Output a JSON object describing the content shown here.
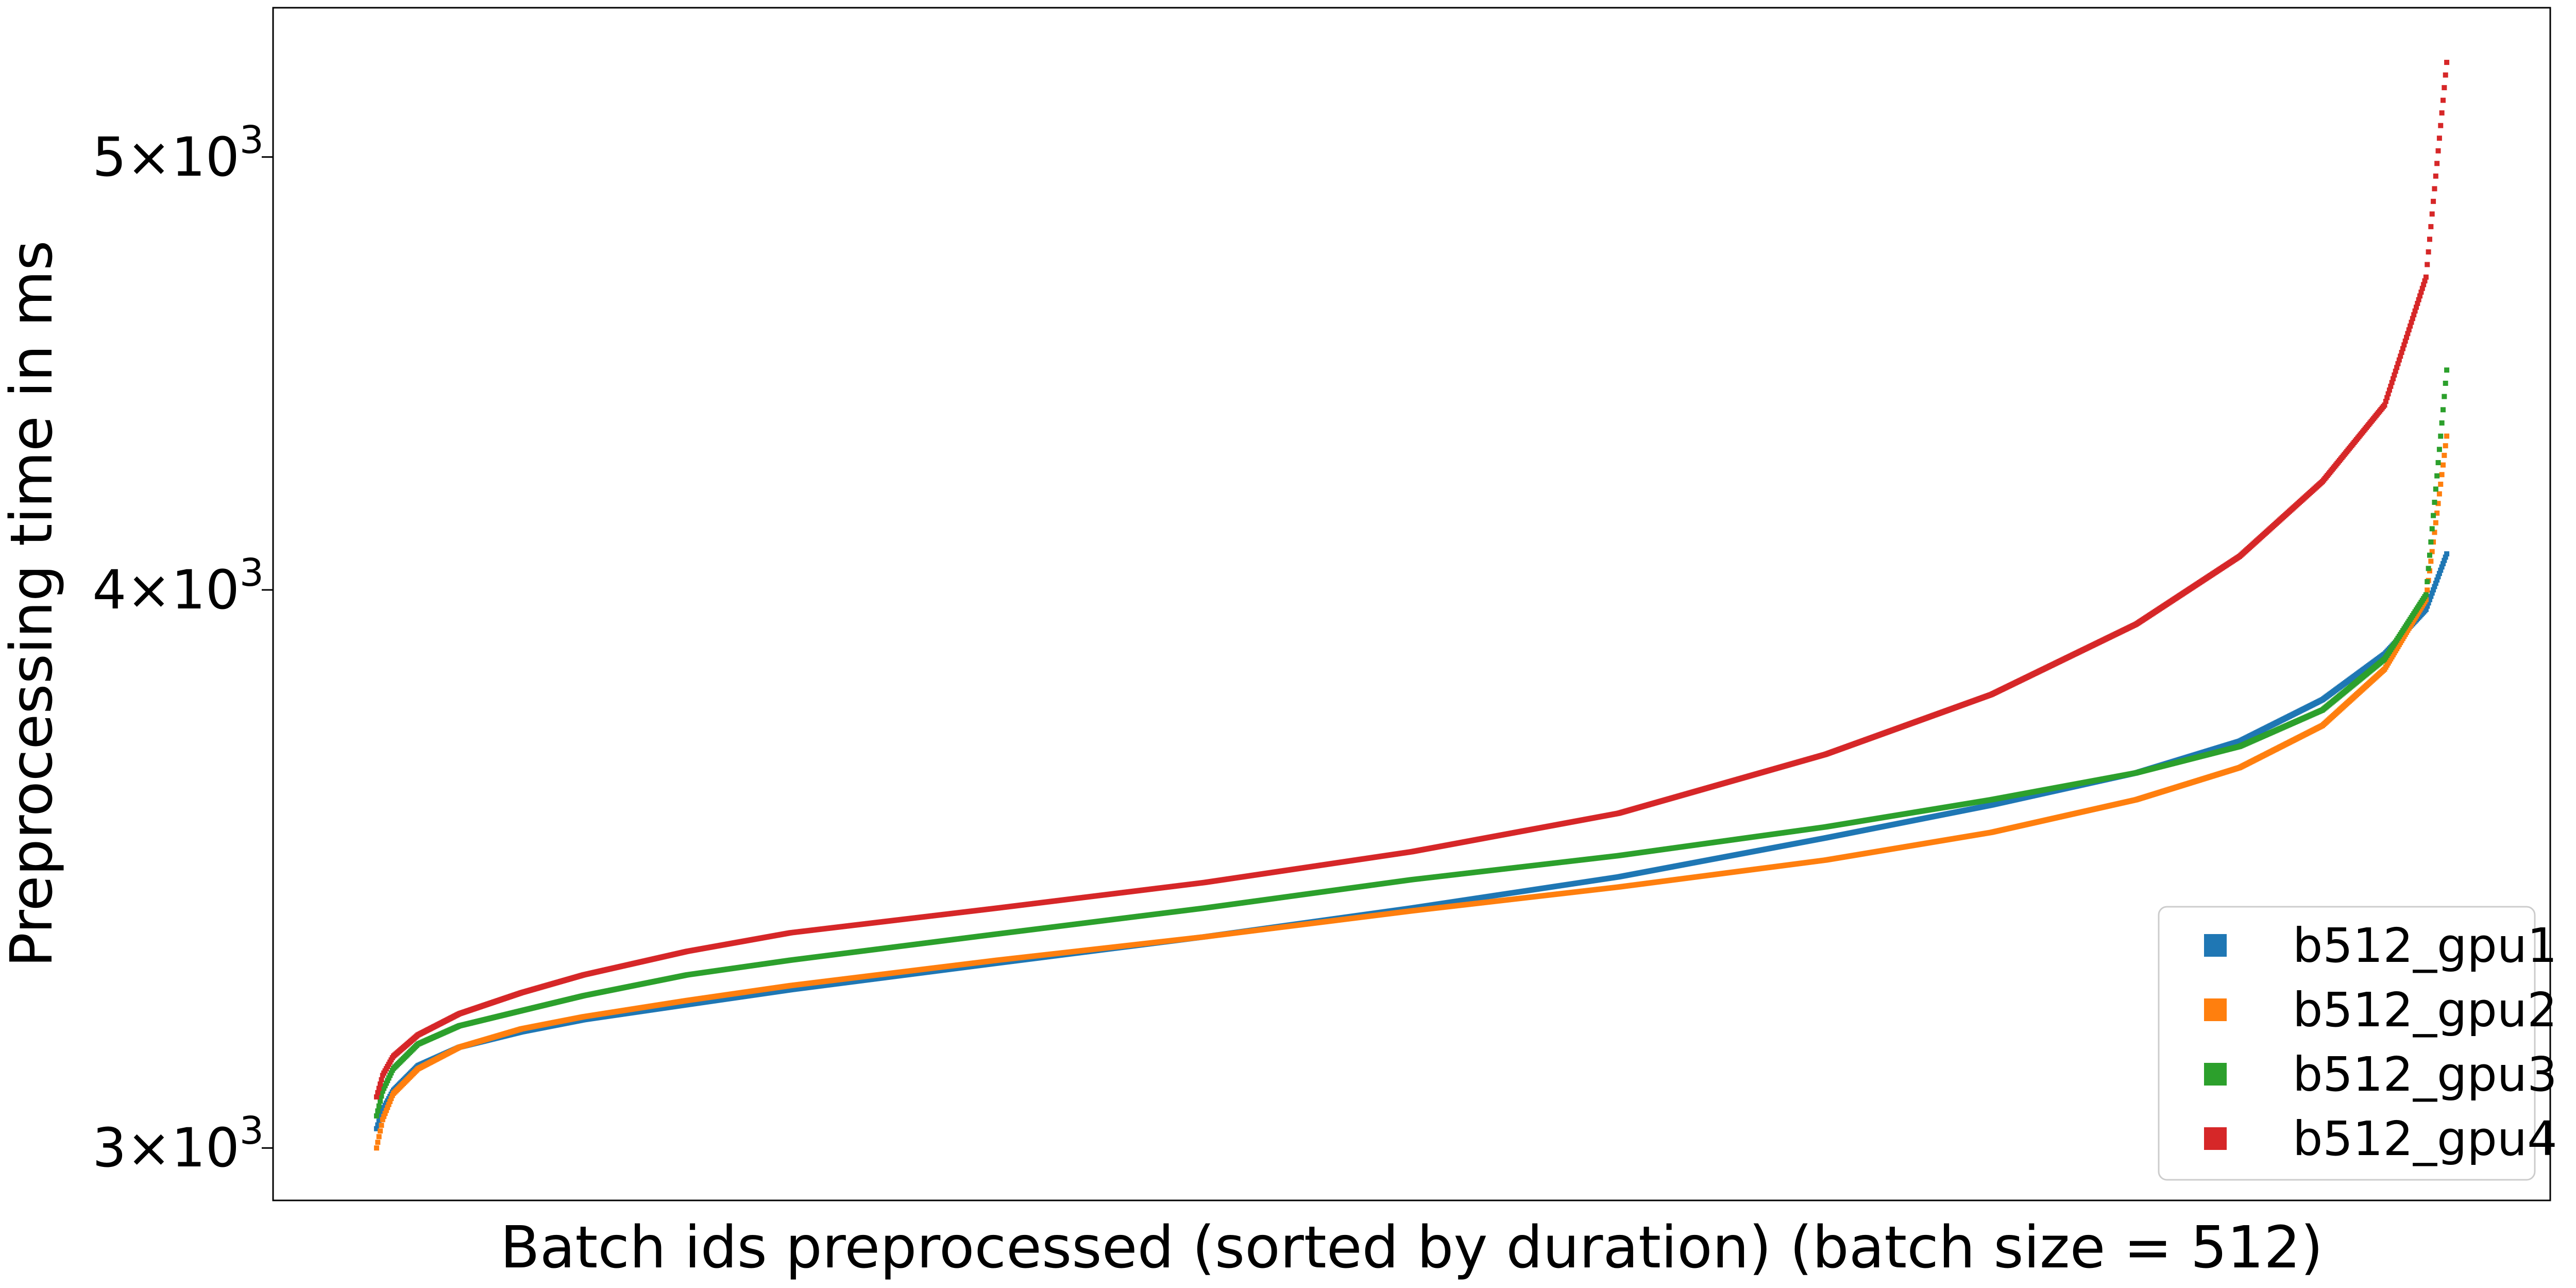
{
  "chart_data": {
    "type": "scatter",
    "title": "",
    "xlabel": "Batch ids preprocessed (sorted by duration) (batch size = 512)",
    "ylabel": "Preprocessing time in ms",
    "yscale": "log",
    "ylim": [
      2920,
      5400
    ],
    "xlim": [
      -0.05,
      1.05
    ],
    "xticks": [],
    "yticks": [
      {
        "value": 3000,
        "mantissa": "3",
        "exponent": "3"
      },
      {
        "value": 4000,
        "mantissa": "4",
        "exponent": "3"
      },
      {
        "value": 5000,
        "mantissa": "5",
        "exponent": "3"
      }
    ],
    "legend": {
      "position": "lower-right"
    },
    "grid": false,
    "series": [
      {
        "name": "b512_gpu1",
        "color": "#1f77b4",
        "points": [
          [
            0,
            3030
          ],
          [
            0.003,
            3060
          ],
          [
            0.008,
            3090
          ],
          [
            0.02,
            3130
          ],
          [
            0.04,
            3160
          ],
          [
            0.07,
            3185
          ],
          [
            0.1,
            3205
          ],
          [
            0.15,
            3230
          ],
          [
            0.2,
            3255
          ],
          [
            0.3,
            3300
          ],
          [
            0.4,
            3345
          ],
          [
            0.5,
            3395
          ],
          [
            0.6,
            3450
          ],
          [
            0.7,
            3520
          ],
          [
            0.78,
            3580
          ],
          [
            0.85,
            3640
          ],
          [
            0.9,
            3700
          ],
          [
            0.94,
            3780
          ],
          [
            0.97,
            3870
          ],
          [
            0.99,
            3960
          ],
          [
            1.0,
            4075
          ]
        ]
      },
      {
        "name": "b512_gpu2",
        "color": "#ff7f0e",
        "points": [
          [
            0,
            3000
          ],
          [
            0.003,
            3045
          ],
          [
            0.008,
            3085
          ],
          [
            0.02,
            3125
          ],
          [
            0.04,
            3160
          ],
          [
            0.07,
            3190
          ],
          [
            0.1,
            3210
          ],
          [
            0.15,
            3237
          ],
          [
            0.2,
            3262
          ],
          [
            0.3,
            3305
          ],
          [
            0.4,
            3345
          ],
          [
            0.5,
            3390
          ],
          [
            0.6,
            3432
          ],
          [
            0.7,
            3480
          ],
          [
            0.78,
            3530
          ],
          [
            0.85,
            3590
          ],
          [
            0.9,
            3650
          ],
          [
            0.94,
            3730
          ],
          [
            0.97,
            3840
          ],
          [
            0.99,
            3980
          ],
          [
            1.0,
            4330
          ]
        ]
      },
      {
        "name": "b512_gpu3",
        "color": "#2ca02c",
        "points": [
          [
            0,
            3050
          ],
          [
            0.003,
            3090
          ],
          [
            0.008,
            3125
          ],
          [
            0.02,
            3165
          ],
          [
            0.04,
            3195
          ],
          [
            0.07,
            3220
          ],
          [
            0.1,
            3245
          ],
          [
            0.15,
            3280
          ],
          [
            0.2,
            3305
          ],
          [
            0.3,
            3350
          ],
          [
            0.4,
            3395
          ],
          [
            0.5,
            3445
          ],
          [
            0.6,
            3488
          ],
          [
            0.7,
            3540
          ],
          [
            0.78,
            3590
          ],
          [
            0.85,
            3640
          ],
          [
            0.9,
            3690
          ],
          [
            0.94,
            3760
          ],
          [
            0.97,
            3860
          ],
          [
            0.99,
            3990
          ],
          [
            1.0,
            4480
          ]
        ]
      },
      {
        "name": "b512_gpu4",
        "color": "#d62728",
        "points": [
          [
            0,
            3080
          ],
          [
            0.003,
            3115
          ],
          [
            0.008,
            3145
          ],
          [
            0.02,
            3180
          ],
          [
            0.04,
            3215
          ],
          [
            0.07,
            3250
          ],
          [
            0.1,
            3280
          ],
          [
            0.15,
            3320
          ],
          [
            0.2,
            3352
          ],
          [
            0.3,
            3395
          ],
          [
            0.4,
            3440
          ],
          [
            0.5,
            3495
          ],
          [
            0.6,
            3565
          ],
          [
            0.7,
            3675
          ],
          [
            0.78,
            3790
          ],
          [
            0.85,
            3930
          ],
          [
            0.9,
            4070
          ],
          [
            0.94,
            4230
          ],
          [
            0.97,
            4400
          ],
          [
            0.99,
            4700
          ],
          [
            1.0,
            5250
          ]
        ]
      }
    ]
  }
}
